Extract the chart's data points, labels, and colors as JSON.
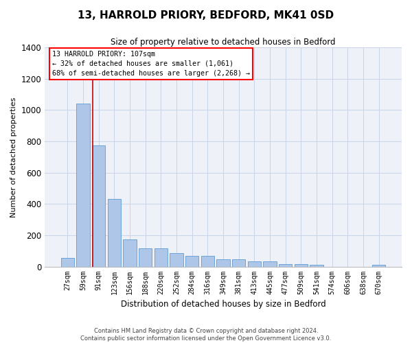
{
  "title": "13, HARROLD PRIORY, BEDFORD, MK41 0SD",
  "subtitle": "Size of property relative to detached houses in Bedford",
  "xlabel": "Distribution of detached houses by size in Bedford",
  "ylabel": "Number of detached properties",
  "categories": [
    "27sqm",
    "59sqm",
    "91sqm",
    "123sqm",
    "156sqm",
    "188sqm",
    "220sqm",
    "252sqm",
    "284sqm",
    "316sqm",
    "349sqm",
    "381sqm",
    "413sqm",
    "445sqm",
    "477sqm",
    "509sqm",
    "541sqm",
    "574sqm",
    "606sqm",
    "638sqm",
    "670sqm"
  ],
  "values": [
    57,
    1040,
    775,
    430,
    175,
    115,
    115,
    85,
    70,
    70,
    45,
    45,
    35,
    35,
    15,
    15,
    10,
    0,
    0,
    0,
    10
  ],
  "bar_color": "#aec6e8",
  "bar_edge_color": "#5b9bd5",
  "grid_color": "#c8d4e8",
  "background_color": "#eef2f8",
  "property_label": "13 HARROLD PRIORY: 107sqm",
  "annotation_line1": "← 32% of detached houses are smaller (1,061)",
  "annotation_line2": "68% of semi-detached houses are larger (2,268) →",
  "redline_x": 1.6,
  "ylim": [
    0,
    1400
  ],
  "yticks": [
    0,
    200,
    400,
    600,
    800,
    1000,
    1200,
    1400
  ],
  "footer_line1": "Contains HM Land Registry data © Crown copyright and database right 2024.",
  "footer_line2": "Contains public sector information licensed under the Open Government Licence v3.0."
}
